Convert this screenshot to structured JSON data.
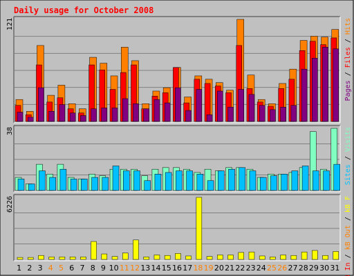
{
  "title": "Daily usage for October 2008",
  "colors": {
    "background": "#c0c0c0",
    "panel": "#c0c0c0",
    "gridline": "#808080",
    "title_text": "#ff0000",
    "hits": "#ff8000",
    "files": "#ff0000",
    "pages": "#800080",
    "visits": "#80ffc0",
    "sites": "#00c0ff",
    "kb_in": "#ff0000",
    "kb_out": "#ff8000",
    "kb_f": "#ffff00",
    "weekend_label": "#ff8000",
    "weekday_label": "#000000"
  },
  "panels": {
    "top": {
      "ymax_label": "121",
      "legend": [
        {
          "text": "Pages",
          "color": "#800080"
        },
        {
          "text": " / ",
          "color": "#000000"
        },
        {
          "text": "Files",
          "color": "#ff0000"
        },
        {
          "text": " / ",
          "color": "#000000"
        },
        {
          "text": "Hits",
          "color": "#ff8000"
        }
      ]
    },
    "middle": {
      "ymax_label": "38",
      "legend": [
        {
          "text": "Sites",
          "color": "#00c0ff"
        },
        {
          "text": " / ",
          "color": "#000000"
        },
        {
          "text": "Visits",
          "color": "#80ffc0"
        }
      ]
    },
    "bottom": {
      "ymax_label": "6226",
      "legend": [
        {
          "text": "kB In",
          "color": "#ff0000"
        },
        {
          "text": " / ",
          "color": "#000000"
        },
        {
          "text": "kB Out",
          "color": "#ff8000"
        },
        {
          "text": " / ",
          "color": "#000000"
        },
        {
          "text": "kB F",
          "color": "#ffff00"
        }
      ]
    }
  },
  "chart_data": {
    "type": "bar",
    "title": "Daily usage for October 2008",
    "categories": [
      "1",
      "2",
      "3",
      "4",
      "5",
      "6",
      "7",
      "8",
      "9",
      "10",
      "11",
      "12",
      "13",
      "14",
      "15",
      "16",
      "17",
      "18",
      "19",
      "20",
      "21",
      "22",
      "23",
      "24",
      "25",
      "26",
      "27",
      "28",
      "29",
      "30",
      "31"
    ],
    "weekend_days": [
      "4",
      "5",
      "11",
      "12",
      "18",
      "19",
      "25",
      "26"
    ],
    "panels": [
      {
        "name": "Pages / Files / Hits",
        "ymax": 121,
        "series": [
          {
            "name": "Hits",
            "values": [
              26,
              12,
              90,
              31,
              43,
              21,
              15,
              76,
              69,
              54,
              88,
              72,
              21,
              36,
              40,
              64,
              29,
              54,
              50,
              46,
              37,
              121,
              55,
              26,
              21,
              45,
              62,
              96,
              101,
              100,
              109
            ]
          },
          {
            "name": "Files",
            "values": [
              19,
              8,
              67,
              23,
              28,
              15,
              10,
              67,
              61,
              38,
              58,
              67,
              15,
              30,
              34,
              64,
              22,
              50,
              45,
              42,
              34,
              90,
              39,
              23,
              18,
              39,
              50,
              84,
              95,
              91,
              99
            ]
          },
          {
            "name": "Pages",
            "values": [
              11,
              5,
              40,
              12,
              20,
              10,
              7,
              15,
              16,
              16,
              27,
              21,
              15,
              26,
              22,
              40,
              13,
              38,
              8,
              36,
              17,
              38,
              32,
              19,
              14,
              17,
              19,
              62,
              75,
              88,
              86
            ]
          }
        ]
      },
      {
        "name": "Sites / Visits",
        "ymax": 38,
        "series": [
          {
            "name": "Visits",
            "values": [
              8,
              4,
              16,
              10,
              16,
              8,
              7,
              10,
              9,
              13,
              13,
              13,
              9,
              13,
              14,
              14,
              13,
              11,
              13,
              12,
              14,
              14,
              13,
              8,
              10,
              10,
              11,
              14,
              36,
              13,
              38
            ]
          },
          {
            "name": "Sites",
            "values": [
              7,
              4,
              12,
              8,
              13,
              7,
              7,
              8,
              8,
              15,
              12,
              12,
              6,
              10,
              11,
              12,
              12,
              10,
              6,
              12,
              13,
              14,
              12,
              8,
              9,
              10,
              12,
              15,
              12,
              12,
              16
            ]
          }
        ]
      },
      {
        "name": "kB In / kB Out / kB F",
        "ymax": 6226,
        "series": [
          {
            "name": "kB F",
            "values": [
              200,
              200,
              400,
              250,
              250,
              250,
              250,
              1800,
              550,
              300,
              650,
              1950,
              250,
              450,
              400,
              600,
              350,
              6226,
              300,
              450,
              450,
              700,
              750,
              350,
              250,
              450,
              400,
              750,
              900,
              400,
              800
            ]
          }
        ]
      }
    ]
  }
}
